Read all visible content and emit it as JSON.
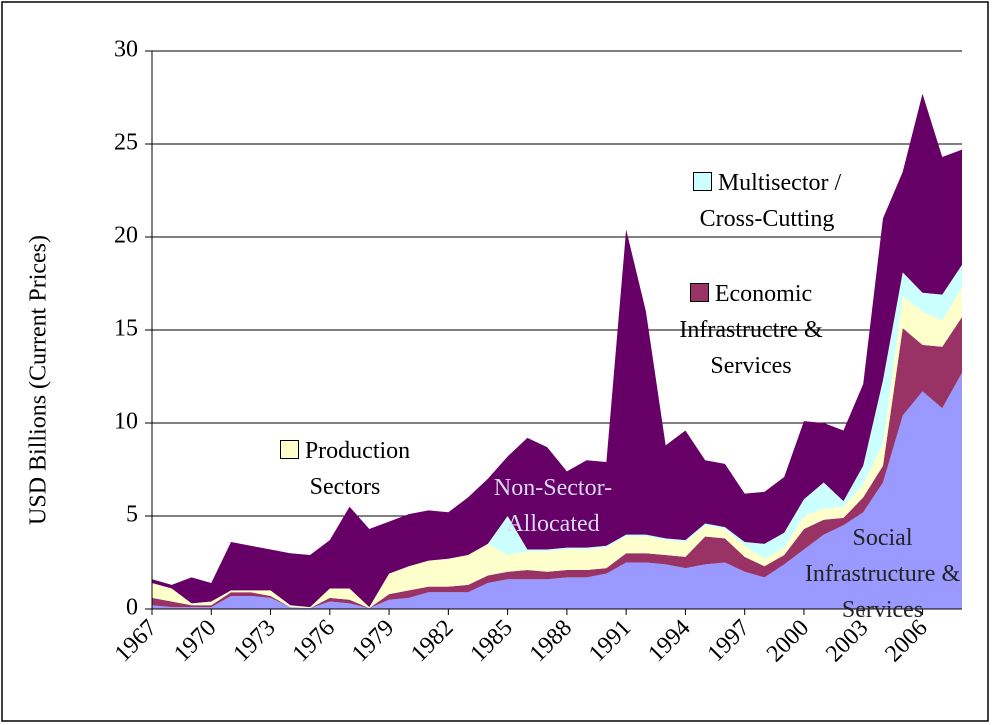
{
  "chart_data": {
    "type": "stacked_area",
    "y_label": "USD Billions (Current Prices)",
    "x": [
      1967,
      1968,
      1969,
      1970,
      1971,
      1972,
      1973,
      1974,
      1975,
      1976,
      1977,
      1978,
      1979,
      1980,
      1981,
      1982,
      1983,
      1984,
      1985,
      1986,
      1987,
      1988,
      1989,
      1990,
      1991,
      1992,
      1993,
      1994,
      1995,
      1996,
      1997,
      1998,
      1999,
      2000,
      2001,
      2002,
      2003,
      2004,
      2005,
      2006,
      2007,
      2008
    ],
    "xlim": [
      1967,
      2008
    ],
    "xticks": [
      1967,
      1970,
      1973,
      1976,
      1979,
      1982,
      1985,
      1988,
      1991,
      1994,
      1997,
      2000,
      2003,
      2006
    ],
    "ylim": [
      0,
      30
    ],
    "yticks": [
      0,
      5,
      10,
      15,
      20,
      25,
      30
    ],
    "grid": true,
    "series": [
      {
        "name": "Social Infrastructure & Services",
        "color": "#9999ff",
        "values": [
          0.2,
          0.1,
          0.1,
          0.1,
          0.7,
          0.7,
          0.6,
          0.1,
          0.05,
          0.4,
          0.3,
          0.05,
          0.5,
          0.6,
          0.9,
          0.9,
          0.9,
          1.4,
          1.6,
          1.6,
          1.6,
          1.7,
          1.7,
          1.9,
          2.5,
          2.5,
          2.4,
          2.2,
          2.4,
          2.5,
          2.0,
          1.7,
          2.4,
          3.2,
          4.0,
          4.5,
          5.2,
          6.8,
          10.4,
          11.7,
          10.8,
          12.7
        ]
      },
      {
        "name": "Economic Infrastructre & Services",
        "color": "#993366",
        "values": [
          0.4,
          0.3,
          0.1,
          0.1,
          0.2,
          0.2,
          0.1,
          0,
          0,
          0.2,
          0.2,
          0,
          0.3,
          0.4,
          0.3,
          0.3,
          0.4,
          0.4,
          0.4,
          0.5,
          0.4,
          0.4,
          0.4,
          0.3,
          0.5,
          0.5,
          0.5,
          0.6,
          1.5,
          1.3,
          0.8,
          0.6,
          0.5,
          1.1,
          0.8,
          0.4,
          0.8,
          0.9,
          4.7,
          2.5,
          3.3,
          3.0
        ]
      },
      {
        "name": "Production Sectors",
        "color": "#ffffcc",
        "values": [
          0.8,
          0.7,
          0.1,
          0.2,
          0.1,
          0.1,
          0.3,
          0.1,
          0.05,
          0.5,
          0.6,
          0.05,
          1.1,
          1.3,
          1.4,
          1.5,
          1.6,
          1.7,
          0.9,
          1.0,
          1.1,
          1.1,
          1.1,
          1.1,
          0.9,
          0.9,
          0.8,
          0.8,
          0.6,
          0.5,
          0.6,
          0.4,
          0.4,
          0.7,
          0.6,
          0.6,
          0.7,
          1.2,
          1.7,
          1.8,
          1.4,
          1.6
        ]
      },
      {
        "name": "Multisector / Cross-Cutting",
        "color": "#ccffff",
        "values": [
          0,
          0,
          0,
          0,
          0,
          0,
          0,
          0,
          0,
          0,
          0,
          0,
          0,
          0,
          0,
          0,
          0,
          0,
          2.1,
          0.1,
          0.1,
          0.1,
          0.1,
          0.1,
          0.1,
          0.1,
          0.1,
          0.1,
          0.1,
          0.1,
          0.2,
          0.8,
          0.8,
          0.9,
          1.4,
          0.3,
          1.0,
          3.4,
          1.3,
          1.0,
          1.4,
          1.2
        ]
      },
      {
        "name": "Non-Sector-Allocated",
        "color": "#660066",
        "values": [
          0.2,
          0.2,
          1.4,
          1.0,
          2.6,
          2.4,
          2.2,
          2.8,
          2.8,
          2.6,
          4.4,
          4.2,
          2.8,
          2.8,
          2.7,
          2.5,
          3.1,
          3.5,
          3.2,
          6.0,
          5.5,
          4.1,
          4.7,
          4.5,
          16.4,
          12.0,
          5.0,
          5.9,
          3.4,
          3.4,
          2.6,
          2.8,
          3.0,
          4.2,
          3.2,
          3.8,
          4.4,
          8.7,
          5.4,
          10.7,
          7.4,
          6.2
        ]
      }
    ]
  }
}
